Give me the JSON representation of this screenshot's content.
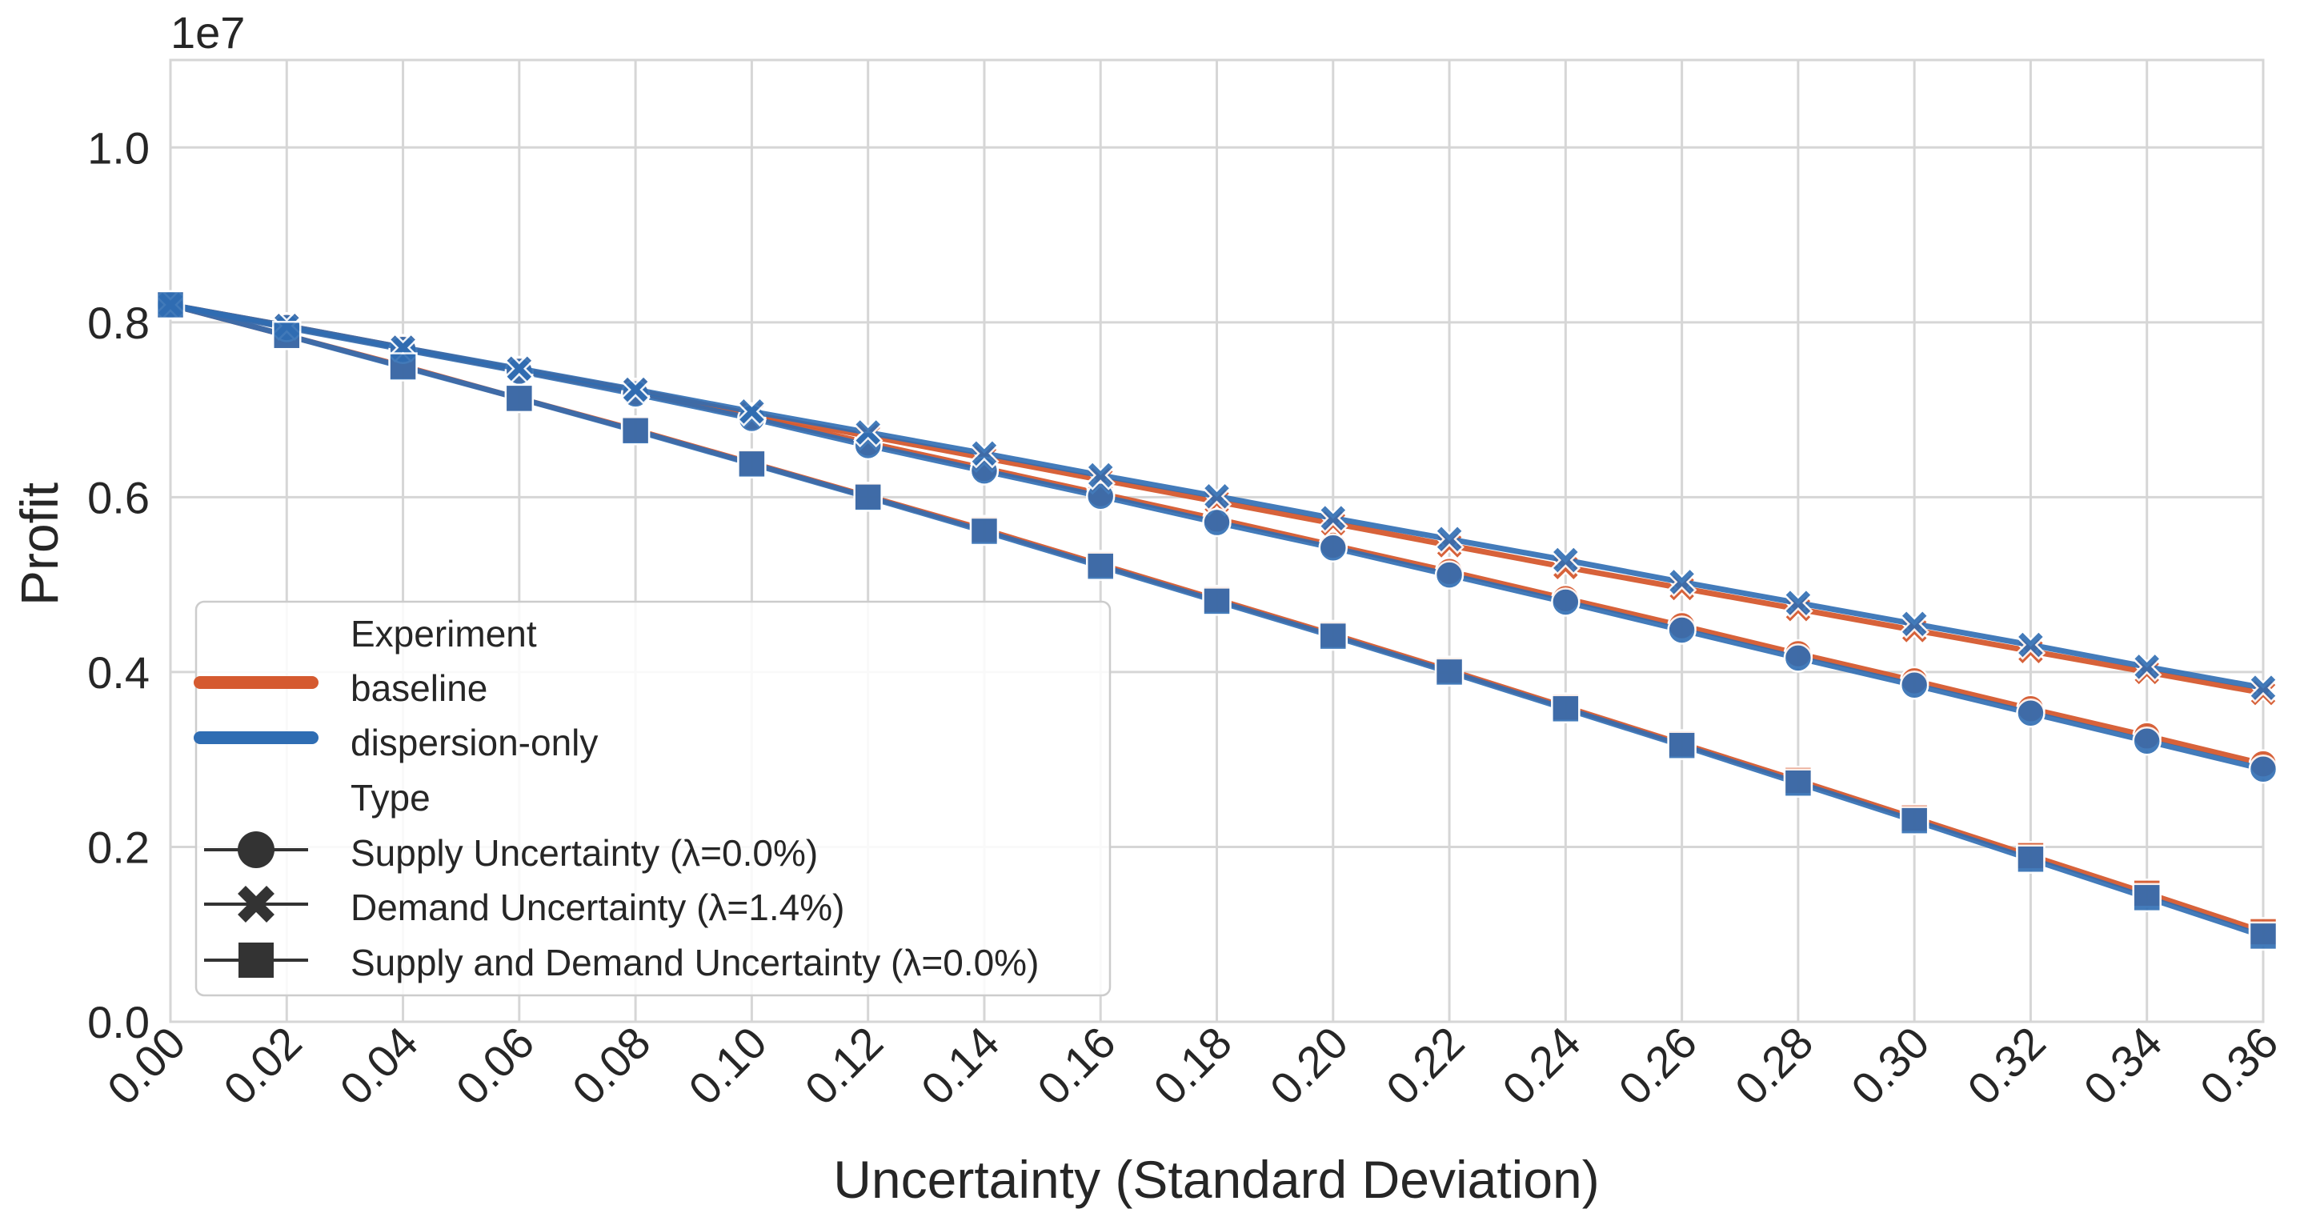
{
  "chart_data": {
    "type": "line",
    "title": "",
    "xlabel": "Uncertainty (Standard Deviation)",
    "ylabel": "Profit",
    "offset_text": "1e7",
    "xlim": [
      0.0,
      0.36
    ],
    "ylim": [
      0.0,
      1.1
    ],
    "x_ticks": [
      "0.00",
      "0.02",
      "0.04",
      "0.06",
      "0.08",
      "0.10",
      "0.12",
      "0.14",
      "0.16",
      "0.18",
      "0.20",
      "0.22",
      "0.24",
      "0.26",
      "0.28",
      "0.30",
      "0.32",
      "0.34",
      "0.36"
    ],
    "y_ticks": [
      "0.0",
      "0.2",
      "0.4",
      "0.6",
      "0.8",
      "1.0"
    ],
    "x": [
      0.0,
      0.02,
      0.04,
      0.06,
      0.08,
      0.1,
      0.12,
      0.14,
      0.16,
      0.18,
      0.2,
      0.22,
      0.24,
      0.26,
      0.28,
      0.3,
      0.32,
      0.34,
      0.36
    ],
    "grid": true,
    "colors": {
      "baseline": "#d55a30",
      "dispersion-only": "#2f6db3",
      "grid": "#d6d6d6",
      "text": "#262626",
      "marker_edge": "#ffffff",
      "legend_marker": "#333333"
    },
    "series": [
      {
        "experiment": "baseline",
        "type": "Supply Uncertainty (λ=0.0%)",
        "marker": "circle",
        "values": [
          0.82,
          0.795,
          0.77,
          0.745,
          0.72,
          0.692,
          0.662,
          0.633,
          0.604,
          0.575,
          0.545,
          0.515,
          0.484,
          0.453,
          0.421,
          0.39,
          0.358,
          0.327,
          0.295
        ]
      },
      {
        "experiment": "baseline",
        "type": "Demand Uncertainty (λ=1.4%)",
        "marker": "x",
        "values": [
          0.82,
          0.796,
          0.771,
          0.746,
          0.722,
          0.695,
          0.67,
          0.645,
          0.62,
          0.595,
          0.57,
          0.545,
          0.52,
          0.496,
          0.472,
          0.448,
          0.424,
          0.4,
          0.376
        ]
      },
      {
        "experiment": "baseline",
        "type": "Supply and Demand Uncertainty (λ=0.0%)",
        "marker": "square",
        "values": [
          0.82,
          0.785,
          0.75,
          0.713,
          0.677,
          0.639,
          0.601,
          0.563,
          0.523,
          0.483,
          0.443,
          0.402,
          0.36,
          0.318,
          0.276,
          0.233,
          0.19,
          0.147,
          0.103
        ]
      },
      {
        "experiment": "dispersion-only",
        "type": "Supply Uncertainty (λ=0.0%)",
        "marker": "circle",
        "values": [
          0.82,
          0.794,
          0.769,
          0.744,
          0.718,
          0.69,
          0.659,
          0.63,
          0.601,
          0.571,
          0.542,
          0.511,
          0.48,
          0.448,
          0.416,
          0.385,
          0.353,
          0.321,
          0.289
        ]
      },
      {
        "experiment": "dispersion-only",
        "type": "Demand Uncertainty (λ=1.4%)",
        "marker": "x",
        "values": [
          0.82,
          0.796,
          0.771,
          0.747,
          0.723,
          0.698,
          0.674,
          0.65,
          0.625,
          0.601,
          0.576,
          0.552,
          0.528,
          0.503,
          0.479,
          0.455,
          0.431,
          0.406,
          0.382
        ]
      },
      {
        "experiment": "dispersion-only",
        "type": "Supply and Demand Uncertainty (λ=0.0%)",
        "marker": "square",
        "values": [
          0.82,
          0.785,
          0.749,
          0.713,
          0.676,
          0.638,
          0.6,
          0.561,
          0.521,
          0.481,
          0.441,
          0.4,
          0.358,
          0.316,
          0.273,
          0.23,
          0.186,
          0.142,
          0.098
        ]
      }
    ],
    "legend": {
      "placement": "lower-left",
      "experiment_title": "Experiment",
      "experiments": [
        "baseline",
        "dispersion-only"
      ],
      "type_title": "Type",
      "types": [
        {
          "label": "Supply Uncertainty (λ=0.0%)",
          "marker": "circle"
        },
        {
          "label": "Demand Uncertainty (λ=1.4%)",
          "marker": "x"
        },
        {
          "label": "Supply and Demand Uncertainty (λ=0.0%)",
          "marker": "square"
        }
      ]
    }
  }
}
